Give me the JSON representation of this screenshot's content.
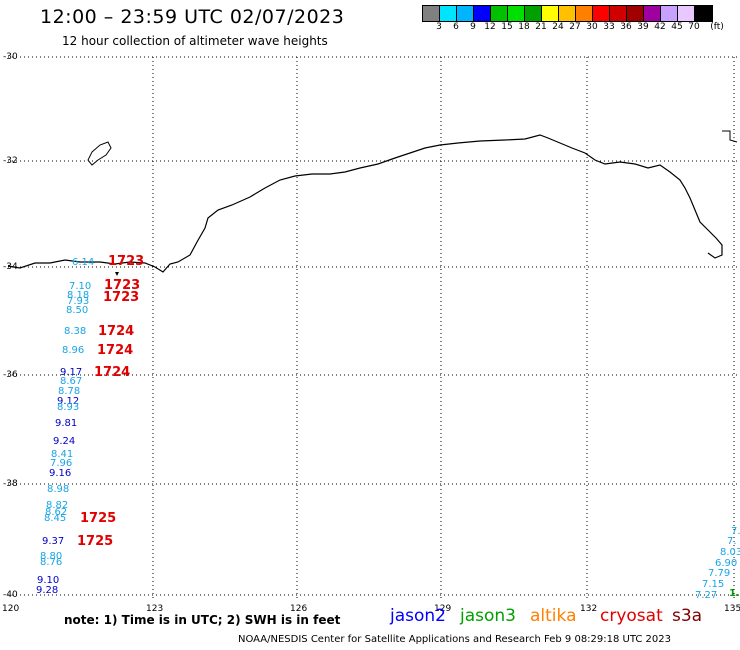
{
  "header": {
    "title": "12:00 – 23:59 UTC 02/07/2023",
    "subtitle": "12 hour collection of altimeter wave heights"
  },
  "legend": {
    "unit": "(ft)",
    "labels": [
      "3",
      "6",
      "9",
      "12",
      "15",
      "18",
      "21",
      "24",
      "27",
      "30",
      "33",
      "36",
      "39",
      "42",
      "45",
      "70"
    ],
    "colors": [
      "#808080",
      "#00e5ff",
      "#00b4ff",
      "#0000ff",
      "#00c000",
      "#00e000",
      "#00a000",
      "#ffff00",
      "#ffc000",
      "#ff8000",
      "#ff0000",
      "#d00000",
      "#a00000",
      "#a000a0",
      "#c8a0ff",
      "#e8c8ff",
      "#000000"
    ]
  },
  "axes": {
    "lat_labels": [
      "-30",
      "-32",
      "-34",
      "-36",
      "-38",
      "-40"
    ],
    "lon_labels": [
      "120",
      "123",
      "126",
      "129",
      "132",
      "135"
    ]
  },
  "observations": {
    "top_left": [
      {
        "v": "6.14",
        "c": "cy"
      },
      {
        "v": "7.10",
        "c": "cy"
      },
      {
        "v": "8.18",
        "c": "cy"
      },
      {
        "v": "7.93",
        "c": "cy"
      },
      {
        "v": "8.50",
        "c": "cy"
      },
      {
        "v": "8.38",
        "c": "cy"
      },
      {
        "v": "8.96",
        "c": "cy"
      },
      {
        "v": "9.17",
        "c": "nv"
      },
      {
        "v": "8.67",
        "c": "cy"
      },
      {
        "v": "8.78",
        "c": "cy"
      },
      {
        "v": "9.12",
        "c": "nv"
      },
      {
        "v": "8.93",
        "c": "cy"
      },
      {
        "v": "9.81",
        "c": "nv"
      },
      {
        "v": "9.24",
        "c": "nv"
      },
      {
        "v": "8.41",
        "c": "cy"
      },
      {
        "v": "7.96",
        "c": "cy"
      },
      {
        "v": "9.16",
        "c": "nv"
      },
      {
        "v": "8.98",
        "c": "cy"
      },
      {
        "v": "8.82",
        "c": "cy"
      },
      {
        "v": "8.62",
        "c": "cy"
      },
      {
        "v": "8.45",
        "c": "cy"
      },
      {
        "v": "9.37",
        "c": "nv"
      },
      {
        "v": "8.80",
        "c": "cy"
      },
      {
        "v": "8.76",
        "c": "cy"
      },
      {
        "v": "9.10",
        "c": "nv"
      },
      {
        "v": "9.28",
        "c": "nv"
      }
    ],
    "times": [
      "1723",
      "1723",
      "1723",
      "1724",
      "1724",
      "1724",
      "1725",
      "1725"
    ],
    "bottom_right": [
      {
        "v": "7.",
        "c": "cy"
      },
      {
        "v": "7.",
        "c": "cy"
      },
      {
        "v": "8.03",
        "c": "cy"
      },
      {
        "v": "6.90",
        "c": "cy"
      },
      {
        "v": "7.79",
        "c": "cy"
      },
      {
        "v": "7.15",
        "c": "cy"
      },
      {
        "v": "7.27",
        "c": "cy"
      },
      {
        "v": "1.",
        "c": "gr"
      }
    ]
  },
  "note": "note: 1) Time is in UTC; 2) SWH is in feet",
  "satellites": [
    {
      "name": "jason2",
      "color": "#0000ff"
    },
    {
      "name": "jason3",
      "color": "#00a000"
    },
    {
      "name": "altika",
      "color": "#ff8000"
    },
    {
      "name": "cryosat",
      "color": "#e00000"
    },
    {
      "name": "s3a",
      "color": "#800000"
    }
  ],
  "footer": "NOAA/NESDIS Center for Satellite Applications and Research    Feb  9 08:29:18 UTC 2023"
}
